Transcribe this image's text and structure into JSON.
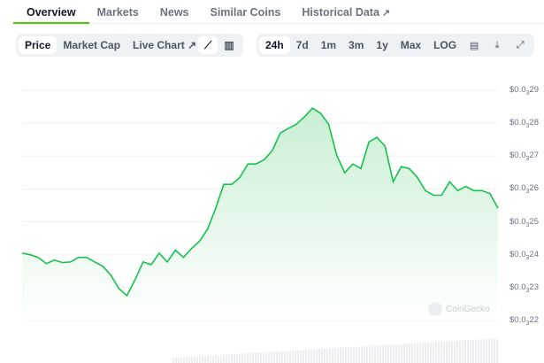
{
  "tabs": [
    {
      "label": "Overview",
      "active": true
    },
    {
      "label": "Markets"
    },
    {
      "label": "News"
    },
    {
      "label": "Similar Coins"
    },
    {
      "label": "Historical Data",
      "external": true
    }
  ],
  "toolbar": {
    "metric": [
      {
        "label": "Price",
        "selected": true
      },
      {
        "label": "Market Cap"
      },
      {
        "label": "Live Chart",
        "external": true
      }
    ],
    "chart_type_icons": [
      "line-chart-icon",
      "candlestick-chart-icon"
    ],
    "ranges": [
      {
        "label": "24h",
        "selected": true
      },
      {
        "label": "7d"
      },
      {
        "label": "1m"
      },
      {
        "label": "3m"
      },
      {
        "label": "1y"
      },
      {
        "label": "Max"
      },
      {
        "label": "LOG"
      }
    ],
    "action_icons": [
      "calendar-icon",
      "download-icon",
      "expand-icon"
    ]
  },
  "watermark": "CoinGecko",
  "colors": {
    "line": "#16c14c",
    "accent": "#4bcc00",
    "fill": "#dff5e5"
  },
  "chart_data": {
    "type": "area",
    "ylim": [
      0.00022,
      0.00029
    ],
    "grid": true,
    "y_ticks": [
      {
        "label_prefix": "$0.0",
        "label_sub": "3",
        "label_suffix": "29",
        "value": 0.00029
      },
      {
        "label_prefix": "$0.0",
        "label_sub": "3",
        "label_suffix": "28",
        "value": 0.00028
      },
      {
        "label_prefix": "$0.0",
        "label_sub": "3",
        "label_suffix": "27",
        "value": 0.00027
      },
      {
        "label_prefix": "$0.0",
        "label_sub": "3",
        "label_suffix": "26",
        "value": 0.00026
      },
      {
        "label_prefix": "$0.0",
        "label_sub": "3",
        "label_suffix": "25",
        "value": 0.00025
      },
      {
        "label_prefix": "$0.0",
        "label_sub": "3",
        "label_suffix": "24",
        "value": 0.00024
      },
      {
        "label_prefix": "$0.0",
        "label_sub": "3",
        "label_suffix": "23",
        "value": 0.00023
      },
      {
        "label_prefix": "$0.0",
        "label_sub": "3",
        "label_suffix": "22",
        "value": 0.00022
      }
    ],
    "values": [
      0.0002405,
      0.00024,
      0.0002392,
      0.0002373,
      0.0002384,
      0.0002376,
      0.0002378,
      0.0002392,
      0.0002392,
      0.0002378,
      0.0002365,
      0.0002338,
      0.0002297,
      0.0002276,
      0.0002324,
      0.0002378,
      0.000237,
      0.0002405,
      0.0002378,
      0.0002414,
      0.0002392,
      0.0002419,
      0.0002441,
      0.0002478,
      0.0002541,
      0.0002614,
      0.0002614,
      0.0002635,
      0.0002676,
      0.0002676,
      0.0002689,
      0.0002716,
      0.000277,
      0.0002784,
      0.0002797,
      0.0002819,
      0.0002846,
      0.000283,
      0.0002797,
      0.0002703,
      0.0002649,
      0.0002676,
      0.0002662,
      0.0002743,
      0.0002757,
      0.000273,
      0.0002622,
      0.0002668,
      0.0002662,
      0.0002635,
      0.0002595,
      0.0002581,
      0.0002581,
      0.0002622,
      0.0002595,
      0.0002608,
      0.0002595,
      0.0002595,
      0.0002586,
      0.0002541
    ]
  }
}
